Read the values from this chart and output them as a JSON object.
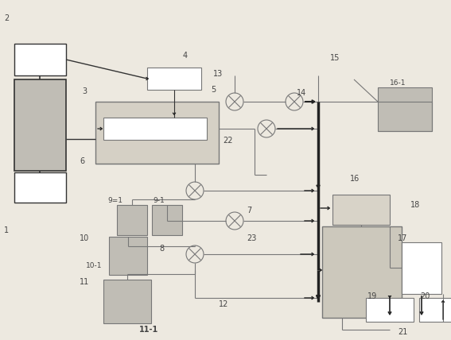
{
  "bg_color": "#ede9e0",
  "lc": "#777777",
  "gc": "#c0bdb5",
  "wc": "#ffffff",
  "ac": "#222222",
  "dark": "#333333"
}
